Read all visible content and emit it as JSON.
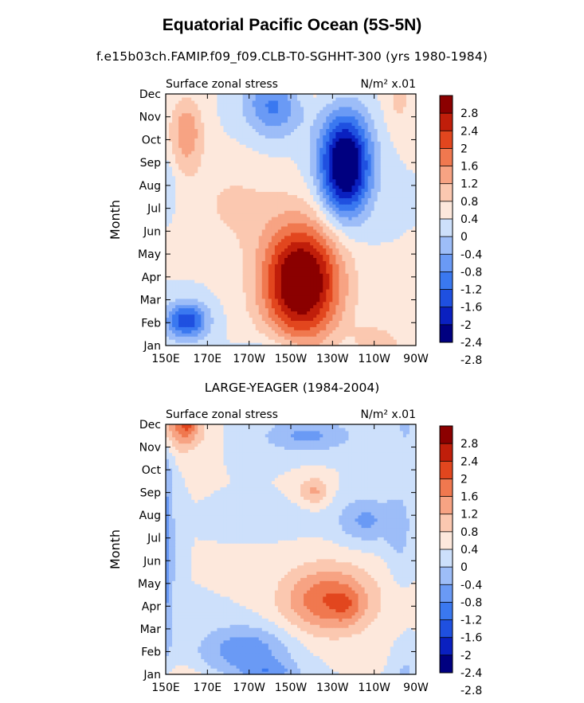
{
  "title": "Equatorial Pacific Ocean (5S-5N)",
  "subtitle_top": "f.e15b03ch.FAMIP.f09_f09.CLB-T0-SGHHT-300 (yrs 1980-1984)",
  "subtitle_bottom": "LARGE-YEAGER (1984-2004)",
  "colors": {
    "levels": [
      "#000080",
      "#0a20c0",
      "#1f50e0",
      "#3a78f0",
      "#6a9af5",
      "#9dbdf8",
      "#cde0fb",
      "#fde8dc",
      "#fbc8b0",
      "#f7a383",
      "#f0784f",
      "#e2461e",
      "#c01e0a",
      "#8b0000"
    ]
  },
  "chart_data": [
    {
      "type": "heatmap",
      "panel": "top",
      "left_label": "Surface zonal stress",
      "right_label": "N/m² x.01",
      "units": "N/m2 x.01",
      "ylabel": "Month",
      "x_ticks": [
        "150E",
        "170E",
        "170W",
        "150W",
        "130W",
        "110W",
        "90W"
      ],
      "y_ticks": [
        "Jan",
        "Feb",
        "Mar",
        "Apr",
        "May",
        "Jun",
        "Jul",
        "Aug",
        "Sep",
        "Oct",
        "Nov",
        "Dec"
      ],
      "colorbar_labels": [
        "2.8",
        "2.4",
        "2",
        "1.6",
        "1.2",
        "0.8",
        "0.4",
        "0",
        "-0.4",
        "-0.8",
        "-1.2",
        "-1.6",
        "-2",
        "-2.4",
        "-2.8"
      ],
      "blobs": [
        {
          "lon": 215,
          "month": 2.8,
          "rx": 19,
          "ry": 2.6,
          "amp": 3.2
        },
        {
          "lon": 236,
          "month": 7.9,
          "rx": 12,
          "ry": 2.2,
          "amp": -3.3
        },
        {
          "lon": 160,
          "month": 1.1,
          "rx": 10,
          "ry": 0.8,
          "amp": -1.9
        },
        {
          "lon": 160,
          "month": 9.3,
          "rx": 8,
          "ry": 1.6,
          "amp": 1.1
        },
        {
          "lon": 202,
          "month": 10.6,
          "rx": 14,
          "ry": 1.4,
          "amp": -1.4
        },
        {
          "lon": 262,
          "month": 10.8,
          "rx": 7,
          "ry": 1.5,
          "amp": 0.5
        },
        {
          "lon": 250,
          "month": 0.2,
          "rx": 10,
          "ry": 0.8,
          "amp": 0.6
        },
        {
          "lon": 182,
          "month": 6.2,
          "rx": 22,
          "ry": 2.0,
          "amp": 0.45
        },
        {
          "lon": 150,
          "month": 7.0,
          "rx": 5,
          "ry": 1.2,
          "amp": -0.45
        }
      ],
      "background": 0.45
    },
    {
      "type": "heatmap",
      "panel": "bottom",
      "left_label": "Surface zonal stress",
      "right_label": "N/m² x.01",
      "units": "N/m2 x.01",
      "ylabel": "Month",
      "x_ticks": [
        "150E",
        "170E",
        "170W",
        "150W",
        "130W",
        "110W",
        "90W"
      ],
      "y_ticks": [
        "Jan",
        "Feb",
        "Mar",
        "Apr",
        "May",
        "Jun",
        "Jul",
        "Aug",
        "Sep",
        "Oct",
        "Nov",
        "Dec"
      ],
      "colorbar_labels": [
        "2.8",
        "2.4",
        "2",
        "1.6",
        "1.2",
        "0.8",
        "0.4",
        "0",
        "-0.4",
        "-0.8",
        "-1.2",
        "-1.6",
        "-2",
        "-2.4",
        "-2.8"
      ],
      "blobs": [
        {
          "lon": 228,
          "month": 3.3,
          "rx": 22,
          "ry": 1.5,
          "amp": 1.6
        },
        {
          "lon": 237,
          "month": 3.0,
          "rx": 7,
          "ry": 0.7,
          "amp": 0.4
        },
        {
          "lon": 158,
          "month": 10.9,
          "rx": 10,
          "ry": 1.0,
          "amp": 1.4
        },
        {
          "lon": 161,
          "month": 11.2,
          "rx": 3,
          "ry": 0.4,
          "amp": 1.0
        },
        {
          "lon": 221,
          "month": 8.1,
          "rx": 7,
          "ry": 0.6,
          "amp": 0.9
        },
        {
          "lon": 150,
          "month": 5.5,
          "rx": 4,
          "ry": 4.5,
          "amp": -1.1
        },
        {
          "lon": 188,
          "month": 1.1,
          "rx": 22,
          "ry": 1.1,
          "amp": -1.1
        },
        {
          "lon": 200,
          "month": 0.1,
          "rx": 14,
          "ry": 0.5,
          "amp": -0.8
        },
        {
          "lon": 246,
          "month": 6.8,
          "rx": 14,
          "ry": 1.0,
          "amp": -0.9
        },
        {
          "lon": 262,
          "month": 6.3,
          "rx": 6,
          "ry": 2.0,
          "amp": -0.5
        },
        {
          "lon": 218,
          "month": 10.5,
          "rx": 22,
          "ry": 0.7,
          "amp": -0.9
        },
        {
          "lon": 205,
          "month": 6.8,
          "rx": 14,
          "ry": 0.6,
          "amp": -0.35
        },
        {
          "lon": 265,
          "month": 11.5,
          "rx": 5,
          "ry": 1.5,
          "amp": -0.6
        },
        {
          "lon": 285,
          "month": 4.0,
          "rx": 8,
          "ry": 6.0,
          "amp": -0.1
        }
      ],
      "background": 0.25
    }
  ]
}
